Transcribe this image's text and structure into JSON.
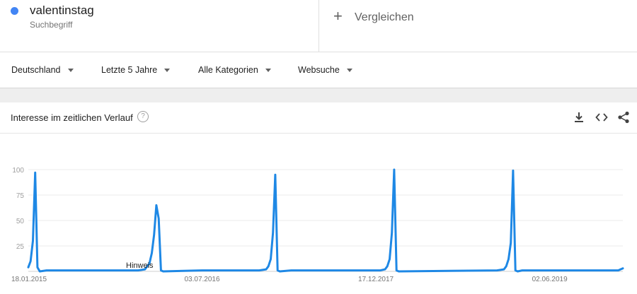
{
  "search_term": {
    "name": "valentinstag",
    "type": "Suchbegriff",
    "color": "#4285f4"
  },
  "compare": {
    "plus": "+",
    "label": "Vergleichen"
  },
  "filters": [
    {
      "label": "Deutschland"
    },
    {
      "label": "Letzte 5 Jahre"
    },
    {
      "label": "Alle Kategorien"
    },
    {
      "label": "Websuche"
    }
  ],
  "card": {
    "title": "Interesse im zeitlichen Verlauf",
    "help_icon": "help-circle-icon",
    "tools": [
      "download-icon",
      "embed-code-icon",
      "share-icon"
    ]
  },
  "note_label": "Hinweis",
  "chart_data": {
    "type": "line",
    "title": "",
    "xlabel": "",
    "ylabel": "",
    "ylim": [
      0,
      100
    ],
    "yticks": [
      25,
      50,
      75,
      100
    ],
    "xtick_labels": [
      "18.01.2015",
      "03.07.2016",
      "17.12.2017",
      "02.06.2019"
    ],
    "grid": true,
    "line_color": "#1e88e5",
    "series": [
      {
        "x": [
          "2015-01-18",
          "2015-01-25",
          "2015-02-01",
          "2015-02-08",
          "2015-02-15",
          "2015-02-22",
          "2015-03-15",
          "2015-06-07",
          "2015-12-20",
          "2016-01-10",
          "2016-01-24",
          "2016-01-31",
          "2016-02-07",
          "2016-02-14",
          "2016-02-21",
          "2016-02-28",
          "2016-03-06",
          "2016-07-03",
          "2016-12-25",
          "2017-01-15",
          "2017-01-22",
          "2017-01-29",
          "2017-02-05",
          "2017-02-12",
          "2017-02-19",
          "2017-02-26",
          "2017-04-02",
          "2017-11-19",
          "2017-12-31",
          "2018-01-14",
          "2018-01-21",
          "2018-01-28",
          "2018-02-04",
          "2018-02-11",
          "2018-02-18",
          "2018-02-25",
          "2018-12-23",
          "2019-01-13",
          "2019-01-20",
          "2019-01-27",
          "2019-02-03",
          "2019-02-10",
          "2019-02-17",
          "2019-02-24",
          "2019-03-10",
          "2019-06-02",
          "2019-12-29",
          "2020-01-05",
          "2020-01-12"
        ],
        "y": [
          4,
          10,
          30,
          97,
          4,
          0,
          1,
          1,
          1,
          2,
          8,
          18,
          36,
          65,
          52,
          1,
          0,
          1,
          1,
          2,
          5,
          12,
          38,
          95,
          1,
          0,
          1,
          1,
          1,
          2,
          5,
          12,
          38,
          100,
          1,
          0,
          1,
          2,
          5,
          12,
          28,
          99,
          1,
          0,
          1,
          1,
          1,
          2,
          3
        ]
      }
    ]
  }
}
